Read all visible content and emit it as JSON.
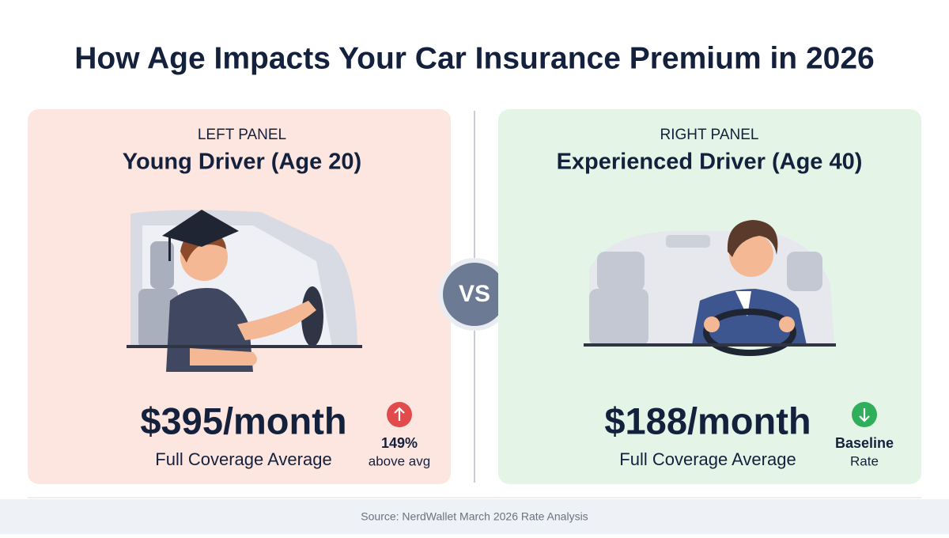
{
  "header": {
    "title": "How Age Impacts Your Car Insurance Premium in 2026"
  },
  "vs_label": "VS",
  "panels": [
    {
      "label": "LEFT PANEL",
      "title": "Young Driver (Age 20)",
      "price": "$395/month",
      "price_caption": "Full Coverage Average",
      "badge_main": "149%",
      "badge_sub": "above avg"
    },
    {
      "label": "RIGHT PANEL",
      "title": "Experienced Driver (Age 40)",
      "price": "$188/month",
      "price_caption": "Full Coverage Average",
      "badge_main": "Baseline",
      "badge_sub": "Rate"
    }
  ],
  "footer": {
    "source": "Source: NerdWallet March 2026 Rate Analysis"
  }
}
